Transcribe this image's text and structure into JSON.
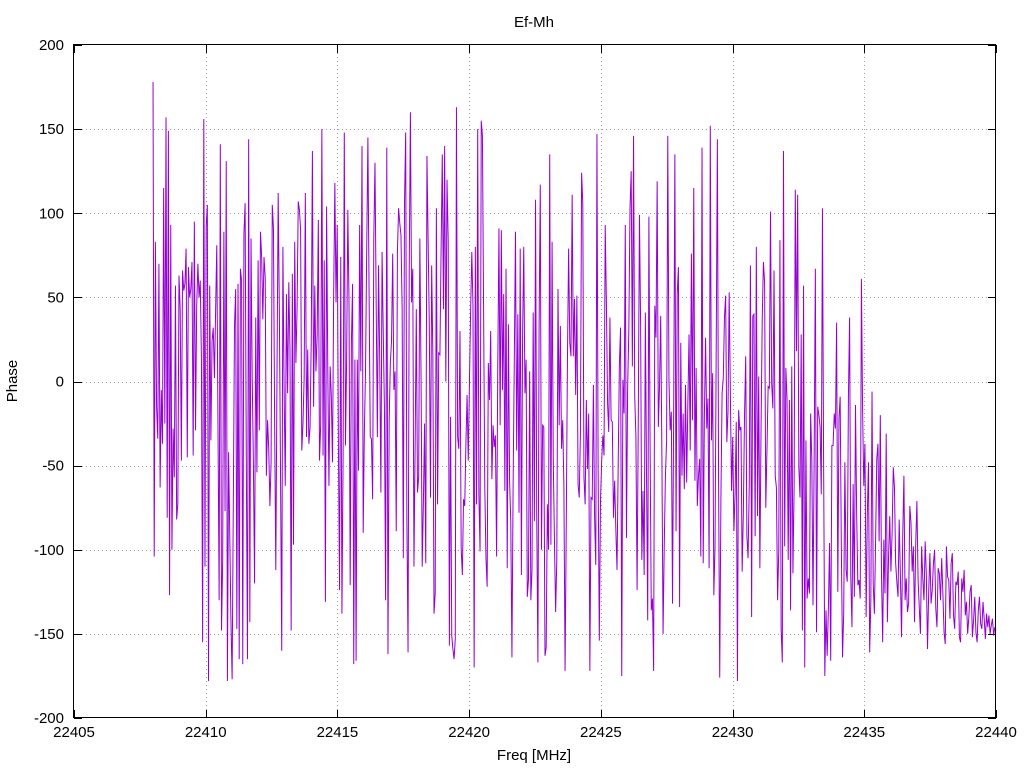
{
  "chart_data": {
    "type": "line",
    "title": "Ef-Mh",
    "xlabel": "Freq [MHz]",
    "ylabel": "Phase",
    "xlim": [
      22405,
      22440
    ],
    "ylim": [
      -200,
      200
    ],
    "xticks": [
      22405,
      22410,
      22415,
      22420,
      22425,
      22430,
      22435,
      22440
    ],
    "yticks": [
      -200,
      -150,
      -100,
      -50,
      0,
      50,
      100,
      150,
      200
    ],
    "xtick_labels": [
      "22405",
      "22410",
      "22415",
      "22420",
      "22425",
      "22430",
      "22435",
      "22440"
    ],
    "ytick_labels": [
      "-200",
      "-150",
      "-100",
      "-50",
      "0",
      "50",
      "100",
      "150",
      "200"
    ],
    "grid": true,
    "legend": "none",
    "series_color": "#9400d3",
    "series": [
      {
        "x_start": 22408.0,
        "x_end": 22440.0,
        "x_step": 0.02,
        "y": [
          178,
          -104,
          83,
          -15,
          -34,
          70,
          -63,
          -5,
          -37,
          115,
          -25,
          157,
          -81,
          149,
          -127,
          93,
          -100,
          -28,
          -57,
          57,
          -82,
          -73,
          63,
          43,
          -47,
          66,
          54,
          58,
          79,
          -45,
          68,
          50,
          55,
          71,
          -44,
          95,
          -29,
          45,
          70,
          50,
          60,
          13,
          -155,
          156,
          -110,
          92,
          105,
          -178,
          57,
          -35,
          24,
          32,
          2,
          42,
          81,
          -25,
          -130,
          141,
          -148,
          -106,
          89,
          -77,
          131,
          -178,
          -42,
          -92,
          -143,
          -177,
          -72,
          33,
          55,
          -147,
          58,
          -165,
          67,
          60,
          -168,
          88,
          106,
          -47,
          -165,
          144,
          -143,
          85,
          2,
          -48,
          -120,
          38,
          -54,
          72,
          -29,
          89,
          74,
          37,
          74,
          62,
          -56,
          -23,
          -40,
          -74,
          -48,
          105,
          91,
          -25,
          -112,
          4,
          112,
          41,
          -56,
          -160,
          80,
          -3,
          -62,
          52,
          -7,
          59,
          19,
          -148,
          64,
          -97,
          83,
          11,
          43,
          107,
          102,
          90,
          -41,
          -25,
          2,
          112,
          -33,
          19,
          -37,
          -27,
          24,
          137,
          -15,
          57,
          6,
          27,
          96,
          -47,
          -26,
          150,
          -44,
          72,
          -131,
          104,
          9,
          -62,
          9,
          -8,
          -48,
          52,
          118,
          47,
          93,
          -36,
          -124,
          74,
          -138,
          -44,
          148,
          -38,
          15,
          102,
          47,
          -121,
          22,
          58,
          -168,
          13,
          -166,
          13,
          -53,
          93,
          6,
          140,
          -90,
          -30,
          7,
          80,
          145,
          53,
          -33,
          -34,
          -70,
          86,
          130,
          47,
          -33,
          69,
          13,
          -66,
          77,
          29,
          -16,
          -130,
          139,
          -162,
          -24,
          11,
          24,
          76,
          -5,
          6,
          -89,
          77,
          103,
          94,
          87,
          43,
          -105,
          106,
          148,
          -81,
          -161,
          67,
          160,
          47,
          67,
          -110,
          -38,
          43,
          -66,
          -57,
          85,
          4,
          -110,
          -72,
          -25,
          -108,
          134,
          84,
          34,
          -69,
          69,
          16,
          -138,
          -126,
          103,
          -73,
          17,
          16,
          79,
          135,
          43,
          140,
          0,
          120,
          84,
          -157,
          -21,
          -151,
          -159,
          -165,
          -153,
          163,
          -33,
          -40,
          30,
          -99,
          -115,
          -70,
          -74,
          -37,
          -8,
          -47,
          -1,
          42,
          77,
          45,
          -170,
          80,
          -73,
          150,
          -67,
          -101,
          155,
          146,
          42,
          -63,
          -105,
          -122,
          11,
          -11,
          30,
          -58,
          -26,
          -39,
          -32,
          -104,
          9,
          91,
          -26,
          90,
          -5,
          52,
          -65,
          67,
          -111,
          34,
          -59,
          -83,
          -164,
          -61,
          13,
          89,
          -41,
          40,
          -78,
          79,
          -115,
          26,
          80,
          -7,
          13,
          -128,
          -118,
          6,
          -130,
          -112,
          41,
          -83,
          108,
          -80,
          -167,
          33,
          117,
          -100,
          -26,
          -27,
          -163,
          -158,
          -73,
          -100,
          135,
          -97,
          83,
          -46,
          -94,
          -137,
          -106,
          55,
          -26,
          33,
          -40,
          -23,
          -62,
          -172,
          -86,
          12,
          79,
          23,
          15,
          111,
          15,
          49,
          -8,
          51,
          -61,
          -69,
          -31,
          124,
          106,
          -57,
          -73,
          -11,
          -52,
          -19,
          -172,
          -69,
          -70,
          -2,
          -81,
          -109,
          147,
          -54,
          -154,
          -71,
          -47,
          -32,
          -44,
          93,
          47,
          -13,
          -30,
          38,
          -23,
          -24,
          -81,
          -59,
          -88,
          -112,
          -49,
          10,
          32,
          -175,
          1,
          -19,
          93,
          -93,
          -4,
          30,
          103,
          125,
          9,
          146,
          -9,
          -33,
          -124,
          -23,
          99,
          33,
          -106,
          -65,
          -115,
          41,
          -56,
          -142,
          98,
          -36,
          -136,
          -129,
          -172,
          45,
          26,
          119,
          -27,
          -3,
          39,
          -43,
          -150,
          -98,
          -56,
          -35,
          146,
          1,
          -29,
          -18,
          -132,
          -17,
          135,
          -89,
          52,
          68,
          -134,
          23,
          -56,
          -19,
          -64,
          -2,
          -60,
          -13,
          28,
          -41,
          76,
          -23,
          115,
          -59,
          8,
          -74,
          -56,
          -46,
          -104,
          139,
          -108,
          -21,
          26,
          -28,
          -10,
          -111,
          152,
          -35,
          5,
          -127,
          -99,
          17,
          144,
          -56,
          -176,
          -70,
          -7,
          2,
          38,
          51,
          -36,
          -18,
          53,
          -7,
          -65,
          -33,
          -89,
          -67,
          -24,
          -178,
          -17,
          -29,
          -27,
          -113,
          -78,
          -20,
          15,
          -92,
          -105,
          -62,
          69,
          -140,
          39,
          40,
          -92,
          80,
          -80,
          3,
          -111,
          -28,
          37,
          71,
          59,
          -75,
          -41,
          -3,
          -4,
          101,
          -1,
          -16,
          66,
          -56,
          -63,
          -130,
          -101,
          84,
          -147,
          -167,
          137,
          -98,
          8,
          -10,
          -106,
          -11,
          -136,
          9,
          -114,
          -63,
          114,
          18,
          111,
          -51,
          -69,
          28,
          -148,
          57,
          -170,
          -35,
          -129,
          -117,
          -126,
          -19,
          -47,
          -133,
          -43,
          67,
          -149,
          -15,
          -20,
          -27,
          -67,
          103,
          -51,
          -175,
          -136,
          -163,
          -136,
          -96,
          -166,
          -38,
          -38,
          -19,
          -28,
          35,
          -125,
          -22,
          -9,
          -99,
          -164,
          -138,
          -48,
          -112,
          -119,
          -9,
          38,
          -116,
          -146,
          -61,
          -128,
          -14,
          -80,
          -121,
          -118,
          -129,
          61,
          -17,
          -62,
          -37,
          -140,
          -79,
          -48,
          -161,
          -130,
          -6,
          -120,
          -138,
          -95,
          -46,
          -37,
          -95,
          -20,
          -114,
          -155,
          -94,
          -126,
          -31,
          -143,
          -104,
          -80,
          -113,
          -90,
          -51,
          -63,
          -108,
          -119,
          -128,
          -82,
          -115,
          -152,
          -92,
          -56,
          -130,
          -117,
          -137,
          -132,
          -74,
          -84,
          -113,
          -98,
          -143,
          -97,
          -71,
          -118,
          -134,
          -150,
          -98,
          -117,
          -130,
          -95,
          -115,
          -159,
          -125,
          -102,
          -132,
          -124,
          -108,
          -100,
          -135,
          -146,
          -111,
          -114,
          -130,
          -105,
          -126,
          -149,
          -156,
          -98,
          -116,
          -118,
          -141,
          -108,
          -102,
          -139,
          -147,
          -119,
          -121,
          -113,
          -152,
          -155,
          -117,
          -125,
          -112,
          -139,
          -131,
          -150,
          -140,
          -125,
          -121,
          -152,
          -142,
          -128,
          -149,
          -155,
          -136,
          -128,
          -144,
          -147,
          -131,
          -141,
          -153,
          -138,
          -146,
          -139,
          -150,
          -145,
          -141,
          -151,
          -146,
          -148
        ]
      }
    ]
  }
}
